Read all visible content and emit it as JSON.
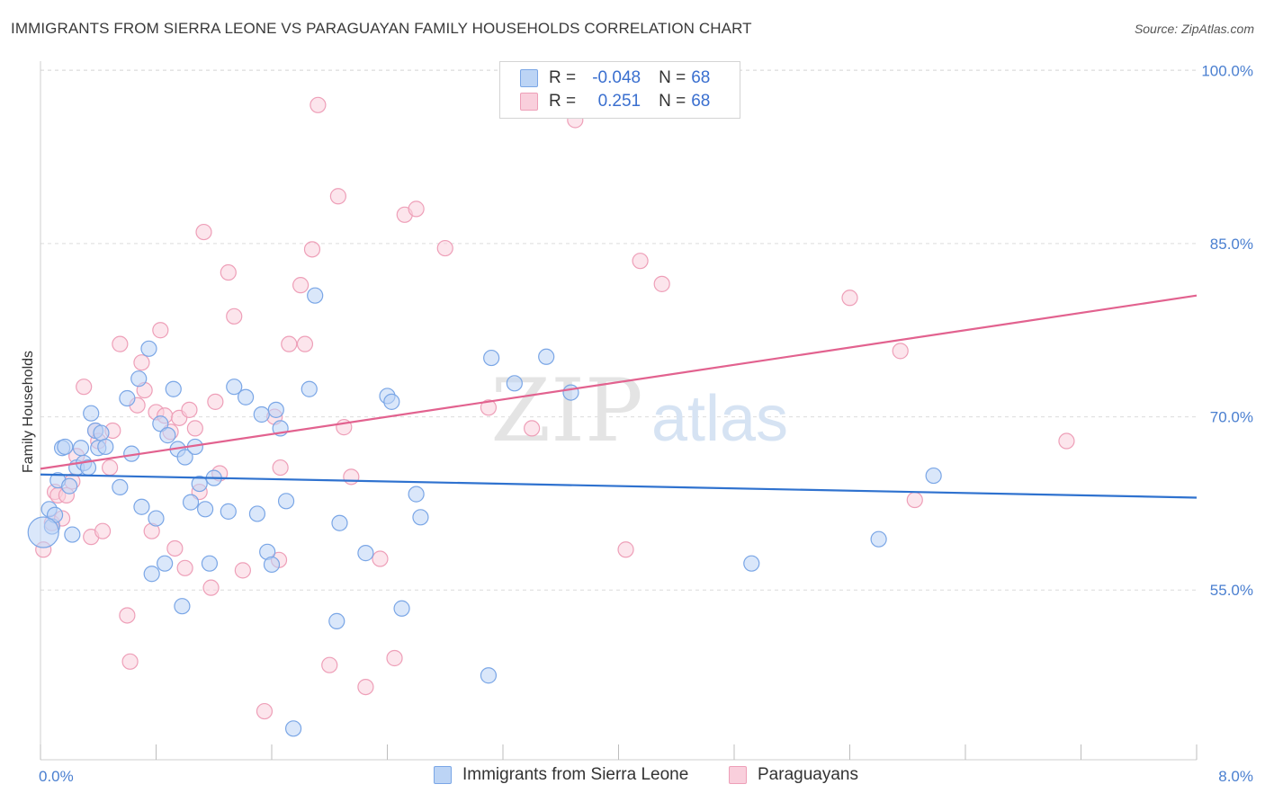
{
  "header": {
    "title": "IMMIGRANTS FROM SIERRA LEONE VS PARAGUAYAN FAMILY HOUSEHOLDS CORRELATION CHART",
    "source": "Source: ZipAtlas.com"
  },
  "legend": {
    "rows": [
      {
        "r_label": "R =",
        "r_value": "-0.048",
        "n_label": "N =",
        "n_value": "68"
      },
      {
        "r_label": "R =",
        "r_value": "0.251",
        "n_label": "N =",
        "n_value": "68"
      }
    ]
  },
  "watermark": {
    "zip": "ZIP",
    "atlas": "atlas"
  },
  "colors": {
    "blue_fill": "#bcd4f5",
    "blue_stroke": "#7aa6e6",
    "blue_line": "#2f72cf",
    "pink_fill": "#f9cfdc",
    "pink_stroke": "#ee9fb8",
    "pink_line": "#e2628f",
    "tick_text": "#4a7fd0"
  },
  "chart_data": {
    "type": "scatter",
    "title": "IMMIGRANTS FROM SIERRA LEONE VS PARAGUAYAN FAMILY HOUSEHOLDS CORRELATION CHART",
    "xlabel": "",
    "ylabel": "Family Households",
    "xlim": [
      0,
      8
    ],
    "ylim": [
      40.3,
      100.8
    ],
    "y_ticks": [
      55,
      70,
      85,
      100
    ],
    "y_tick_labels": [
      "55.0%",
      "70.0%",
      "85.0%",
      "100.0%"
    ],
    "x_tick_labels": [
      "0.0%",
      "8.0%"
    ],
    "legend_position": "top-center",
    "series": [
      {
        "name": "Immigrants from Sierra Leone",
        "color": "blue",
        "trend": {
          "x": [
            0,
            8
          ],
          "y": [
            65.0,
            63.0
          ]
        },
        "points": [
          [
            0.06,
            62.0
          ],
          [
            0.08,
            60.5
          ],
          [
            0.1,
            61.5
          ],
          [
            0.12,
            64.5
          ],
          [
            0.15,
            67.3
          ],
          [
            0.17,
            67.4
          ],
          [
            0.2,
            64.0
          ],
          [
            0.22,
            59.8
          ],
          [
            0.25,
            65.6
          ],
          [
            0.28,
            67.3
          ],
          [
            0.3,
            66.0
          ],
          [
            0.33,
            65.6
          ],
          [
            0.35,
            70.3
          ],
          [
            0.38,
            68.8
          ],
          [
            0.4,
            67.3
          ],
          [
            0.42,
            68.6
          ],
          [
            0.45,
            67.4
          ],
          [
            0.55,
            63.9
          ],
          [
            0.6,
            71.6
          ],
          [
            0.63,
            66.8
          ],
          [
            0.68,
            73.3
          ],
          [
            0.7,
            62.2
          ],
          [
            0.75,
            75.9
          ],
          [
            0.77,
            56.4
          ],
          [
            0.8,
            61.2
          ],
          [
            0.83,
            69.4
          ],
          [
            0.86,
            57.3
          ],
          [
            0.88,
            68.4
          ],
          [
            0.92,
            72.4
          ],
          [
            0.95,
            67.2
          ],
          [
            0.98,
            53.6
          ],
          [
            1.0,
            66.5
          ],
          [
            1.04,
            62.6
          ],
          [
            1.07,
            67.4
          ],
          [
            1.1,
            64.2
          ],
          [
            1.14,
            62.0
          ],
          [
            1.17,
            57.3
          ],
          [
            1.2,
            64.7
          ],
          [
            1.3,
            61.8
          ],
          [
            1.34,
            72.6
          ],
          [
            1.42,
            71.7
          ],
          [
            1.5,
            61.6
          ],
          [
            1.53,
            70.2
          ],
          [
            1.57,
            58.3
          ],
          [
            1.6,
            57.2
          ],
          [
            1.63,
            70.6
          ],
          [
            1.66,
            69.0
          ],
          [
            1.7,
            62.7
          ],
          [
            1.75,
            43.0
          ],
          [
            1.86,
            72.4
          ],
          [
            1.9,
            80.5
          ],
          [
            2.05,
            52.3
          ],
          [
            2.07,
            60.8
          ],
          [
            2.25,
            58.2
          ],
          [
            2.4,
            71.8
          ],
          [
            2.43,
            71.3
          ],
          [
            2.5,
            53.4
          ],
          [
            2.6,
            63.3
          ],
          [
            2.63,
            61.3
          ],
          [
            3.1,
            47.6
          ],
          [
            3.12,
            75.1
          ],
          [
            3.28,
            72.9
          ],
          [
            3.5,
            75.2
          ],
          [
            3.67,
            72.1
          ],
          [
            4.92,
            57.3
          ],
          [
            5.8,
            59.4
          ],
          [
            6.18,
            64.9
          ],
          [
            0.02,
            60.0
          ]
        ]
      },
      {
        "name": "Paraguayans",
        "color": "pink",
        "trend": {
          "x": [
            0,
            8
          ],
          "y": [
            65.5,
            80.5
          ]
        },
        "points": [
          [
            0.02,
            58.5
          ],
          [
            0.08,
            60.8
          ],
          [
            0.1,
            63.5
          ],
          [
            0.12,
            63.2
          ],
          [
            0.15,
            61.2
          ],
          [
            0.18,
            63.2
          ],
          [
            0.22,
            64.4
          ],
          [
            0.25,
            66.6
          ],
          [
            0.3,
            72.6
          ],
          [
            0.35,
            59.6
          ],
          [
            0.38,
            68.8
          ],
          [
            0.4,
            67.9
          ],
          [
            0.43,
            60.1
          ],
          [
            0.48,
            65.6
          ],
          [
            0.5,
            68.8
          ],
          [
            0.55,
            76.3
          ],
          [
            0.6,
            52.8
          ],
          [
            0.62,
            48.8
          ],
          [
            0.67,
            71.0
          ],
          [
            0.7,
            74.7
          ],
          [
            0.72,
            72.3
          ],
          [
            0.77,
            60.1
          ],
          [
            0.8,
            70.4
          ],
          [
            0.83,
            77.5
          ],
          [
            0.86,
            70.1
          ],
          [
            0.9,
            68.7
          ],
          [
            0.93,
            58.6
          ],
          [
            0.96,
            69.9
          ],
          [
            1.0,
            56.9
          ],
          [
            1.03,
            70.6
          ],
          [
            1.07,
            69.0
          ],
          [
            1.1,
            63.5
          ],
          [
            1.13,
            86.0
          ],
          [
            1.18,
            55.2
          ],
          [
            1.21,
            71.3
          ],
          [
            1.24,
            65.1
          ],
          [
            1.3,
            82.5
          ],
          [
            1.34,
            78.7
          ],
          [
            1.4,
            56.7
          ],
          [
            1.55,
            44.5
          ],
          [
            1.62,
            70.0
          ],
          [
            1.66,
            65.6
          ],
          [
            1.72,
            76.3
          ],
          [
            1.8,
            81.4
          ],
          [
            1.83,
            76.3
          ],
          [
            1.88,
            84.5
          ],
          [
            1.92,
            97.0
          ],
          [
            2.0,
            48.5
          ],
          [
            2.06,
            89.1
          ],
          [
            2.1,
            69.1
          ],
          [
            2.15,
            64.8
          ],
          [
            2.25,
            46.6
          ],
          [
            2.35,
            57.7
          ],
          [
            2.45,
            49.1
          ],
          [
            2.52,
            87.5
          ],
          [
            2.6,
            88.0
          ],
          [
            2.8,
            84.6
          ],
          [
            3.1,
            70.8
          ],
          [
            3.4,
            69.0
          ],
          [
            3.7,
            95.7
          ],
          [
            4.05,
            58.5
          ],
          [
            4.15,
            83.5
          ],
          [
            4.3,
            81.5
          ],
          [
            5.6,
            80.3
          ],
          [
            5.95,
            75.7
          ],
          [
            6.05,
            62.8
          ],
          [
            7.1,
            67.9
          ],
          [
            1.65,
            57.6
          ]
        ]
      }
    ]
  },
  "bottom_legend": {
    "items": [
      {
        "label": "Immigrants from Sierra Leone"
      },
      {
        "label": "Paraguayans"
      }
    ]
  }
}
